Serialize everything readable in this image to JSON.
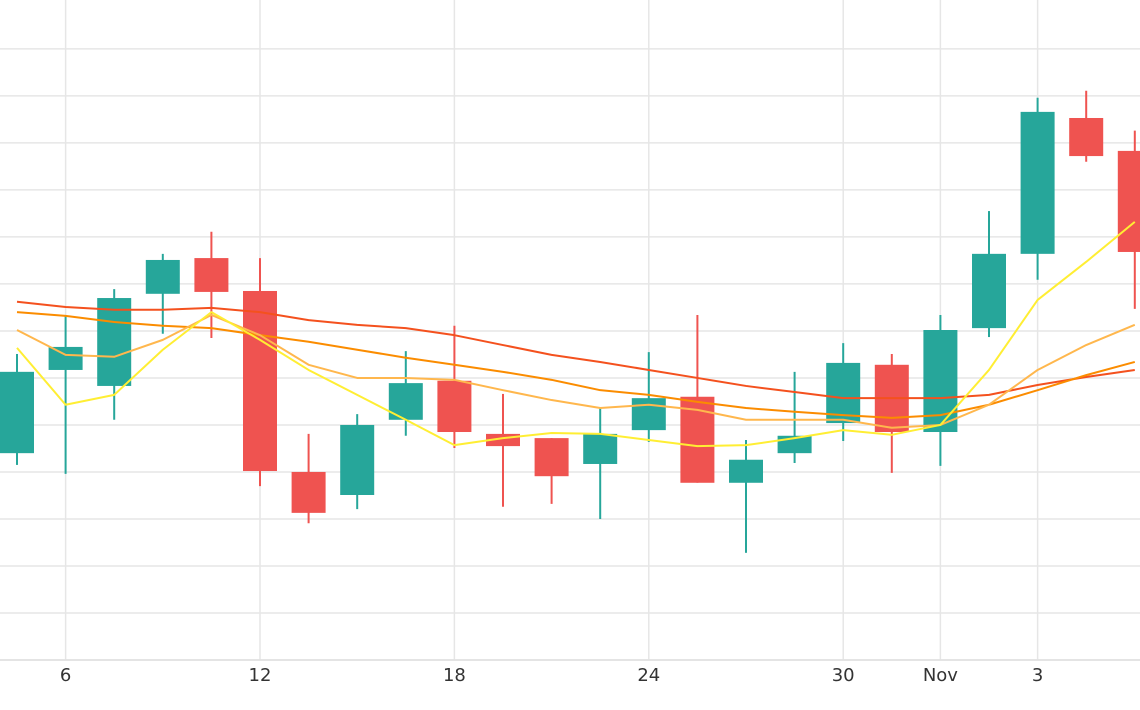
{
  "chart_data": {
    "type": "candlestick",
    "categories": [
      null,
      "6",
      null,
      null,
      null,
      "12",
      null,
      null,
      null,
      "18",
      null,
      null,
      null,
      "24",
      null,
      null,
      null,
      "30",
      null,
      "Nov",
      null,
      "3",
      null,
      null
    ],
    "open": [
      4.4,
      6.17,
      5.83,
      7.79,
      8.55,
      7.85,
      4.0,
      3.51,
      5.11,
      5.94,
      4.81,
      4.72,
      4.17,
      4.89,
      5.6,
      3.77,
      4.4,
      5.04,
      6.28,
      4.85,
      7.06,
      8.64,
      11.53,
      10.83
    ],
    "high": [
      6.51,
      7.34,
      7.89,
      8.64,
      9.11,
      8.55,
      4.81,
      5.23,
      6.57,
      7.11,
      5.66,
      4.72,
      5.36,
      6.55,
      7.34,
      4.68,
      6.13,
      6.74,
      6.51,
      7.34,
      9.55,
      11.96,
      12.11,
      11.26
    ],
    "low": [
      4.15,
      3.96,
      5.11,
      6.94,
      6.85,
      3.7,
      2.91,
      3.21,
      4.77,
      4.51,
      3.26,
      3.32,
      3.0,
      4.64,
      3.77,
      2.28,
      4.19,
      4.66,
      3.98,
      4.13,
      6.87,
      8.09,
      10.6,
      7.47
    ],
    "close": [
      6.13,
      6.66,
      7.7,
      8.51,
      7.83,
      4.02,
      3.13,
      5.0,
      5.89,
      4.85,
      4.55,
      3.91,
      4.81,
      5.57,
      3.77,
      4.26,
      4.77,
      6.32,
      4.85,
      7.02,
      8.64,
      11.66,
      10.72,
      8.68
    ],
    "up_color": "#26a69a",
    "down_color": "#ef5350",
    "series": [
      {
        "color": "#f4511e",
        "values": [
          7.62,
          7.51,
          7.45,
          7.45,
          7.49,
          7.4,
          7.23,
          7.13,
          7.06,
          6.91,
          6.7,
          6.49,
          6.34,
          6.17,
          6.0,
          5.83,
          5.7,
          5.57,
          5.57,
          5.57,
          5.64,
          5.85,
          6.02,
          6.17
        ]
      },
      {
        "color": "#fb8c00",
        "values": [
          7.4,
          7.32,
          7.19,
          7.11,
          7.06,
          6.91,
          6.77,
          6.6,
          6.43,
          6.28,
          6.13,
          5.96,
          5.74,
          5.64,
          5.49,
          5.36,
          5.28,
          5.21,
          5.15,
          5.21,
          5.43,
          5.74,
          6.06,
          6.34
        ]
      },
      {
        "color": "#ffb74d",
        "values": [
          7.02,
          6.49,
          6.45,
          6.81,
          7.34,
          6.91,
          6.28,
          6.0,
          6.0,
          5.96,
          5.74,
          5.53,
          5.36,
          5.43,
          5.32,
          5.11,
          5.11,
          5.11,
          4.94,
          5.0,
          5.43,
          6.17,
          6.7,
          7.13
        ]
      },
      {
        "color": "#ffee33",
        "values": [
          6.64,
          5.43,
          5.64,
          6.6,
          7.4,
          6.81,
          6.17,
          5.64,
          5.11,
          4.57,
          4.72,
          4.83,
          4.81,
          4.68,
          4.55,
          4.57,
          4.72,
          4.89,
          4.79,
          5.0,
          6.17,
          7.66,
          8.47,
          9.32
        ]
      }
    ],
    "ylim": [
      0,
      14.04
    ],
    "yticks": [
      0,
      1,
      2,
      3,
      4,
      5,
      6,
      7,
      8,
      9,
      10,
      11,
      12,
      13
    ],
    "grid": true
  }
}
